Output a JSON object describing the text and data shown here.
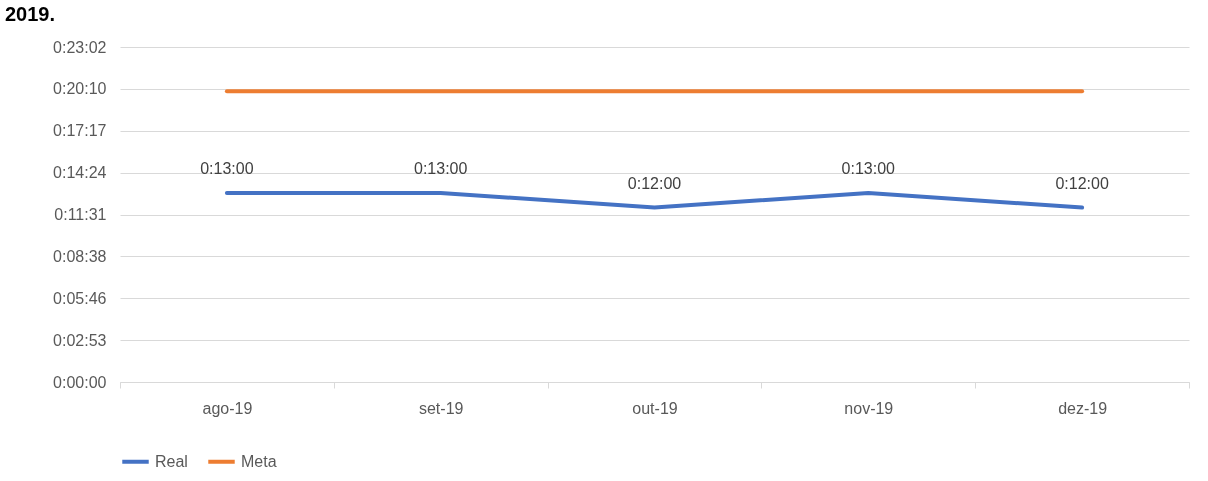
{
  "chart_data": {
    "type": "line",
    "title": "2019.",
    "categories": [
      "ago-19",
      "set-19",
      "out-19",
      "nov-19",
      "dez-19"
    ],
    "series": [
      {
        "name": "Real",
        "color": "#4472c4",
        "values": [
          13,
          13,
          12,
          13,
          12
        ],
        "value_labels": [
          "0:13:00",
          "0:13:00",
          "0:12:00",
          "0:13:00",
          "0:12:00"
        ]
      },
      {
        "name": "Meta",
        "color": "#ed7d31",
        "values": [
          20,
          20,
          20,
          20,
          20
        ]
      }
    ],
    "ylim": [
      0,
      23.04
    ],
    "yticks": [
      {
        "value": 0,
        "label": "0:00:00"
      },
      {
        "value": 2.88,
        "label": "0:02:53"
      },
      {
        "value": 5.76,
        "label": "0:05:46"
      },
      {
        "value": 8.64,
        "label": "0:08:38"
      },
      {
        "value": 11.52,
        "label": "0:11:31"
      },
      {
        "value": 14.4,
        "label": "0:14:24"
      },
      {
        "value": 17.28,
        "label": "0:17:17"
      },
      {
        "value": 20.16,
        "label": "0:20:10"
      },
      {
        "value": 23.04,
        "label": "0:23:02"
      }
    ],
    "grid": "y",
    "legend": "bottom"
  }
}
